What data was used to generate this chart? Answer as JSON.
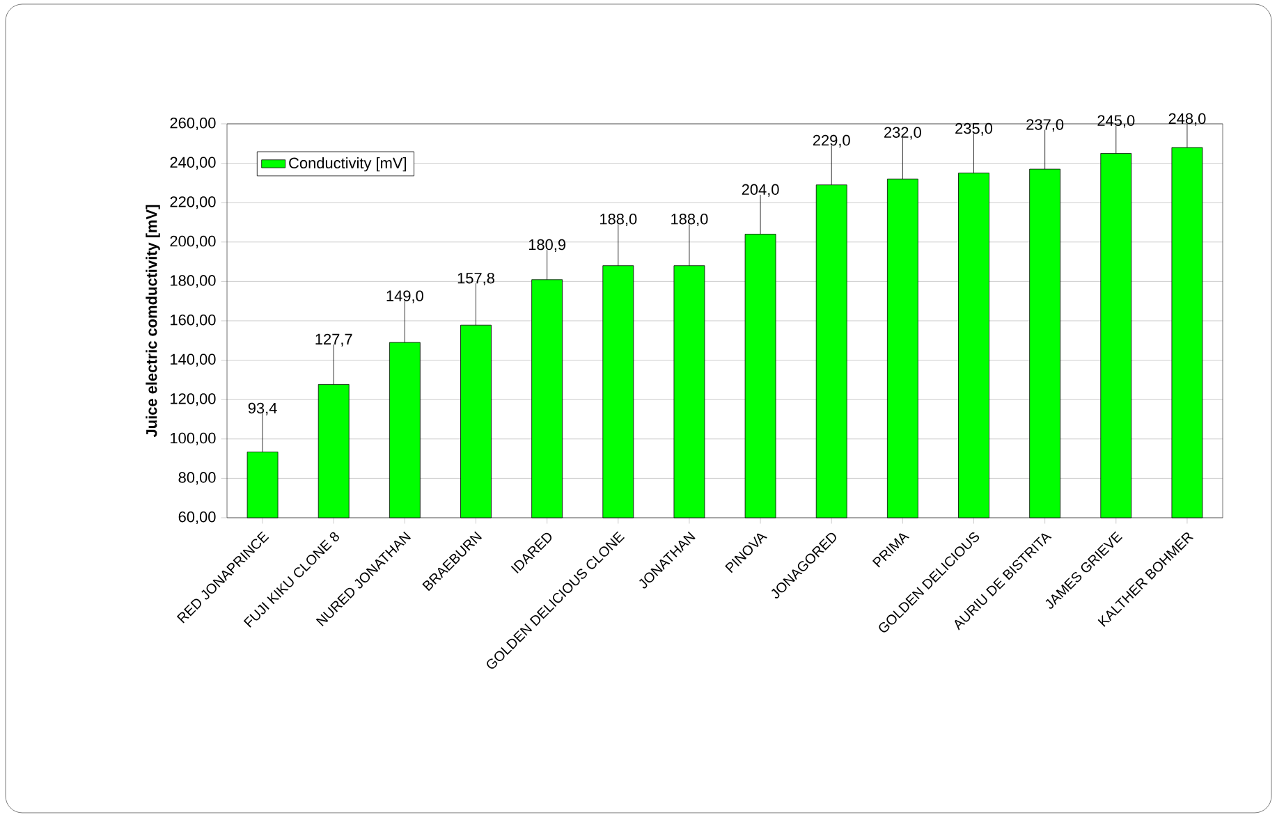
{
  "chart_data": {
    "type": "bar",
    "ylabel": "Juice electric comductivity [mV]",
    "categories": [
      "RED JONAPRINCE",
      "FUJI KIKU CLONE 8",
      "NURED JONATHAN",
      "BRAEBURN",
      "IDARED",
      "GOLDEN DELICIOUS CLONE",
      "JONATHAN",
      "PINOVA",
      "JONAGORED",
      "PRIMA",
      "GOLDEN DELICIOUS",
      "AURIU DE BISTRITA",
      "JAMES GRIEVE",
      "KALTHER BOHMER"
    ],
    "series": [
      {
        "name": "Conductivity [mV]",
        "color": "#00ff00",
        "values": [
          93.4,
          127.7,
          149.0,
          157.8,
          180.9,
          188.0,
          188.0,
          204.0,
          229.0,
          232.0,
          235.0,
          237.0,
          245.0,
          248.0
        ],
        "errors": [
          [
            93.4,
            113
          ],
          [
            127.7,
            148
          ],
          [
            149.0,
            170
          ],
          [
            157.8,
            179
          ],
          [
            180.9,
            196
          ],
          [
            188.0,
            209
          ],
          [
            188.0,
            209
          ],
          [
            204.0,
            224
          ],
          [
            229.0,
            249
          ],
          [
            232.0,
            253
          ],
          [
            235.0,
            255
          ],
          [
            237.0,
            257
          ],
          [
            245.0,
            259
          ],
          [
            248.0,
            260
          ]
        ],
        "value_labels": [
          "93,4",
          "127,7",
          "149,0",
          "157,8",
          "180,9",
          "188,0",
          "188,0",
          "204,0",
          "229,0",
          "232,0",
          "235,0",
          "237,0",
          "245,0",
          "248,0"
        ]
      }
    ],
    "ylim": [
      60,
      260
    ],
    "yticks": [
      {
        "value": 60,
        "label": "60,00"
      },
      {
        "value": 80,
        "label": "80,00"
      },
      {
        "value": 100,
        "label": "100,00"
      },
      {
        "value": 120,
        "label": "120,00"
      },
      {
        "value": 140,
        "label": "140,00"
      },
      {
        "value": 160,
        "label": "160,00"
      },
      {
        "value": 180,
        "label": "180,00"
      },
      {
        "value": 200,
        "label": "200,00"
      },
      {
        "value": 220,
        "label": "220,00"
      },
      {
        "value": 240,
        "label": "240,00"
      },
      {
        "value": 260,
        "label": "260,00"
      }
    ],
    "grid": "y",
    "legend": "top left"
  }
}
